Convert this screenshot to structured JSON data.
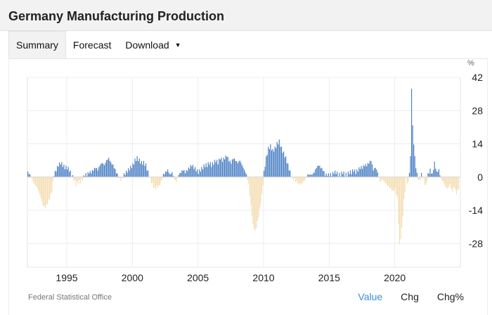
{
  "header": {
    "title": "Germany Manufacturing Production"
  },
  "tabs": [
    {
      "label": "Summary",
      "active": true
    },
    {
      "label": "Forecast",
      "active": false
    },
    {
      "label": "Download",
      "active": false,
      "dropdown": true
    }
  ],
  "footer": {
    "source": "Federal Statistical Office",
    "toggles": [
      {
        "label": "Value",
        "active": true
      },
      {
        "label": "Chg",
        "active": false
      },
      {
        "label": "Chg%",
        "active": false
      }
    ]
  },
  "colors": {
    "positive": "#4a7fc4",
    "negative": "#f3ddb0",
    "active_toggle": "#3a8fd8"
  },
  "chart_data": {
    "type": "bar",
    "title": "",
    "unit_label": "%",
    "xlabel": "",
    "ylabel": "",
    "ylim": [
      -38,
      42
    ],
    "yticks": [
      42,
      28,
      14,
      0,
      -14,
      -28
    ],
    "xticks": [
      "1995",
      "2000",
      "2005",
      "2010",
      "2015",
      "2020"
    ],
    "xrange": [
      "1992-01",
      "2024-12"
    ],
    "grid": true,
    "series": [
      {
        "name": "",
        "monthly_annual_change_pct": [
          {
            "period": "1992-01",
            "value": 2
          },
          {
            "period": "1992-03",
            "value": 1
          },
          {
            "period": "1992-05",
            "value": -1
          },
          {
            "period": "1992-07",
            "value": -3
          },
          {
            "period": "1992-09",
            "value": -4
          },
          {
            "period": "1992-11",
            "value": -6
          },
          {
            "period": "1993-01",
            "value": -9
          },
          {
            "period": "1993-03",
            "value": -12
          },
          {
            "period": "1993-05",
            "value": -13
          },
          {
            "period": "1993-07",
            "value": -11
          },
          {
            "period": "1993-09",
            "value": -9
          },
          {
            "period": "1993-11",
            "value": -6
          },
          {
            "period": "1994-01",
            "value": 1
          },
          {
            "period": "1994-03",
            "value": 3
          },
          {
            "period": "1994-05",
            "value": 5
          },
          {
            "period": "1994-07",
            "value": 6
          },
          {
            "period": "1994-09",
            "value": 5
          },
          {
            "period": "1994-11",
            "value": 4
          },
          {
            "period": "1995-01",
            "value": 4
          },
          {
            "period": "1995-03",
            "value": 3
          },
          {
            "period": "1995-05",
            "value": 1
          },
          {
            "period": "1995-07",
            "value": -1
          },
          {
            "period": "1995-09",
            "value": -3
          },
          {
            "period": "1995-11",
            "value": -2
          },
          {
            "period": "1996-01",
            "value": -2
          },
          {
            "period": "1996-03",
            "value": -1
          },
          {
            "period": "1996-05",
            "value": 1
          },
          {
            "period": "1996-07",
            "value": 1
          },
          {
            "period": "1996-09",
            "value": 2
          },
          {
            "period": "1996-11",
            "value": 2
          },
          {
            "period": "1997-01",
            "value": 3
          },
          {
            "period": "1997-03",
            "value": 4
          },
          {
            "period": "1997-05",
            "value": 3
          },
          {
            "period": "1997-07",
            "value": 5
          },
          {
            "period": "1997-09",
            "value": 6
          },
          {
            "period": "1997-11",
            "value": 5
          },
          {
            "period": "1998-01",
            "value": 7
          },
          {
            "period": "1998-03",
            "value": 8
          },
          {
            "period": "1998-05",
            "value": 6
          },
          {
            "period": "1998-07",
            "value": 5
          },
          {
            "period": "1998-09",
            "value": 3
          },
          {
            "period": "1998-11",
            "value": 1
          },
          {
            "period": "1999-01",
            "value": -1
          },
          {
            "period": "1999-03",
            "value": -1
          },
          {
            "period": "1999-05",
            "value": 1
          },
          {
            "period": "1999-07",
            "value": 2
          },
          {
            "period": "1999-09",
            "value": 3
          },
          {
            "period": "1999-11",
            "value": 4
          },
          {
            "period": "2000-01",
            "value": 5
          },
          {
            "period": "2000-03",
            "value": 7
          },
          {
            "period": "2000-05",
            "value": 8
          },
          {
            "period": "2000-07",
            "value": 7
          },
          {
            "period": "2000-09",
            "value": 6
          },
          {
            "period": "2000-11",
            "value": 6
          },
          {
            "period": "2001-01",
            "value": 5
          },
          {
            "period": "2001-03",
            "value": 2
          },
          {
            "period": "2001-05",
            "value": -1
          },
          {
            "period": "2001-07",
            "value": -3
          },
          {
            "period": "2001-09",
            "value": -5
          },
          {
            "period": "2001-11",
            "value": -4
          },
          {
            "period": "2002-01",
            "value": -4
          },
          {
            "period": "2002-03",
            "value": -2
          },
          {
            "period": "2002-05",
            "value": 1
          },
          {
            "period": "2002-07",
            "value": 2
          },
          {
            "period": "2002-09",
            "value": 3
          },
          {
            "period": "2002-11",
            "value": 1
          },
          {
            "period": "2003-01",
            "value": 2
          },
          {
            "period": "2003-03",
            "value": -1
          },
          {
            "period": "2003-05",
            "value": -2
          },
          {
            "period": "2003-07",
            "value": 1
          },
          {
            "period": "2003-09",
            "value": 2
          },
          {
            "period": "2003-11",
            "value": 3
          },
          {
            "period": "2004-01",
            "value": 2
          },
          {
            "period": "2004-03",
            "value": 3
          },
          {
            "period": "2004-05",
            "value": 4
          },
          {
            "period": "2004-07",
            "value": 5
          },
          {
            "period": "2004-09",
            "value": 4
          },
          {
            "period": "2004-11",
            "value": 3
          },
          {
            "period": "2005-01",
            "value": 2
          },
          {
            "period": "2005-03",
            "value": 3
          },
          {
            "period": "2005-05",
            "value": 4
          },
          {
            "period": "2005-07",
            "value": 5
          },
          {
            "period": "2005-09",
            "value": 5
          },
          {
            "period": "2005-11",
            "value": 6
          },
          {
            "period": "2006-01",
            "value": 5
          },
          {
            "period": "2006-03",
            "value": 6
          },
          {
            "period": "2006-05",
            "value": 7
          },
          {
            "period": "2006-07",
            "value": 6
          },
          {
            "period": "2006-09",
            "value": 8
          },
          {
            "period": "2006-11",
            "value": 7
          },
          {
            "period": "2007-01",
            "value": 8
          },
          {
            "period": "2007-03",
            "value": 9
          },
          {
            "period": "2007-05",
            "value": 7
          },
          {
            "period": "2007-07",
            "value": 6
          },
          {
            "period": "2007-09",
            "value": 8
          },
          {
            "period": "2007-11",
            "value": 7
          },
          {
            "period": "2008-01",
            "value": 6
          },
          {
            "period": "2008-03",
            "value": 7
          },
          {
            "period": "2008-05",
            "value": 5
          },
          {
            "period": "2008-07",
            "value": 3
          },
          {
            "period": "2008-09",
            "value": 1
          },
          {
            "period": "2008-11",
            "value": -3
          },
          {
            "period": "2009-01",
            "value": -12
          },
          {
            "period": "2009-03",
            "value": -20
          },
          {
            "period": "2009-05",
            "value": -23
          },
          {
            "period": "2009-07",
            "value": -19
          },
          {
            "period": "2009-09",
            "value": -14
          },
          {
            "period": "2009-11",
            "value": -8
          },
          {
            "period": "2010-01",
            "value": 2
          },
          {
            "period": "2010-03",
            "value": 8
          },
          {
            "period": "2010-05",
            "value": 12
          },
          {
            "period": "2010-07",
            "value": 13
          },
          {
            "period": "2010-09",
            "value": 11
          },
          {
            "period": "2010-11",
            "value": 12
          },
          {
            "period": "2011-01",
            "value": 14
          },
          {
            "period": "2011-03",
            "value": 15
          },
          {
            "period": "2011-05",
            "value": 12
          },
          {
            "period": "2011-07",
            "value": 10
          },
          {
            "period": "2011-09",
            "value": 8
          },
          {
            "period": "2011-11",
            "value": 5
          },
          {
            "period": "2012-01",
            "value": 2
          },
          {
            "period": "2012-03",
            "value": -1
          },
          {
            "period": "2012-05",
            "value": -1
          },
          {
            "period": "2012-07",
            "value": -2
          },
          {
            "period": "2012-09",
            "value": -3
          },
          {
            "period": "2012-11",
            "value": -3
          },
          {
            "period": "2013-01",
            "value": -2
          },
          {
            "period": "2013-03",
            "value": -1
          },
          {
            "period": "2013-05",
            "value": 1
          },
          {
            "period": "2013-07",
            "value": 1
          },
          {
            "period": "2013-09",
            "value": 1
          },
          {
            "period": "2013-11",
            "value": 2
          },
          {
            "period": "2014-01",
            "value": 4
          },
          {
            "period": "2014-03",
            "value": 5
          },
          {
            "period": "2014-05",
            "value": 4
          },
          {
            "period": "2014-07",
            "value": 3
          },
          {
            "period": "2014-09",
            "value": 1
          },
          {
            "period": "2014-11",
            "value": 1
          },
          {
            "period": "2015-01",
            "value": 1
          },
          {
            "period": "2015-03",
            "value": 1
          },
          {
            "period": "2015-05",
            "value": 2
          },
          {
            "period": "2015-07",
            "value": 2
          },
          {
            "period": "2015-09",
            "value": 1
          },
          {
            "period": "2015-11",
            "value": 1
          },
          {
            "period": "2016-01",
            "value": 2
          },
          {
            "period": "2016-03",
            "value": 1
          },
          {
            "period": "2016-05",
            "value": 1
          },
          {
            "period": "2016-07",
            "value": 2
          },
          {
            "period": "2016-09",
            "value": 2
          },
          {
            "period": "2016-11",
            "value": 3
          },
          {
            "period": "2017-01",
            "value": 2
          },
          {
            "period": "2017-03",
            "value": 3
          },
          {
            "period": "2017-05",
            "value": 4
          },
          {
            "period": "2017-07",
            "value": 4
          },
          {
            "period": "2017-09",
            "value": 5
          },
          {
            "period": "2017-11",
            "value": 5
          },
          {
            "period": "2018-01",
            "value": 6
          },
          {
            "period": "2018-03",
            "value": 7
          },
          {
            "period": "2018-05",
            "value": 3
          },
          {
            "period": "2018-07",
            "value": 4
          },
          {
            "period": "2018-09",
            "value": 2
          },
          {
            "period": "2018-11",
            "value": -2
          },
          {
            "period": "2019-01",
            "value": -1
          },
          {
            "period": "2019-03",
            "value": -2
          },
          {
            "period": "2019-05",
            "value": -3
          },
          {
            "period": "2019-07",
            "value": -4
          },
          {
            "period": "2019-09",
            "value": -5
          },
          {
            "period": "2019-11",
            "value": -6
          },
          {
            "period": "2020-01",
            "value": -5
          },
          {
            "period": "2020-03",
            "value": -9
          },
          {
            "period": "2020-05",
            "value": -29
          },
          {
            "period": "2020-07",
            "value": -22
          },
          {
            "period": "2020-09",
            "value": -10
          },
          {
            "period": "2020-11",
            "value": -1
          },
          {
            "period": "2021-01",
            "value": -3
          },
          {
            "period": "2021-03",
            "value": 8
          },
          {
            "period": "2021-04",
            "value": 38
          },
          {
            "period": "2021-05",
            "value": 21
          },
          {
            "period": "2021-07",
            "value": 8
          },
          {
            "period": "2021-09",
            "value": 1
          },
          {
            "period": "2021-11",
            "value": -2
          },
          {
            "period": "2022-01",
            "value": 1
          },
          {
            "period": "2022-03",
            "value": -1
          },
          {
            "period": "2022-05",
            "value": -4
          },
          {
            "period": "2022-07",
            "value": 1
          },
          {
            "period": "2022-09",
            "value": 3
          },
          {
            "period": "2022-11",
            "value": 1
          },
          {
            "period": "2023-01",
            "value": 6
          },
          {
            "period": "2023-03",
            "value": 2
          },
          {
            "period": "2023-05",
            "value": 3
          },
          {
            "period": "2023-07",
            "value": -1
          },
          {
            "period": "2023-09",
            "value": -2
          },
          {
            "period": "2023-11",
            "value": -4
          },
          {
            "period": "2024-01",
            "value": -5
          },
          {
            "period": "2024-03",
            "value": -3
          },
          {
            "period": "2024-05",
            "value": -6
          },
          {
            "period": "2024-07",
            "value": -4
          },
          {
            "period": "2024-09",
            "value": -7
          },
          {
            "period": "2024-11",
            "value": -5
          }
        ]
      }
    ]
  }
}
